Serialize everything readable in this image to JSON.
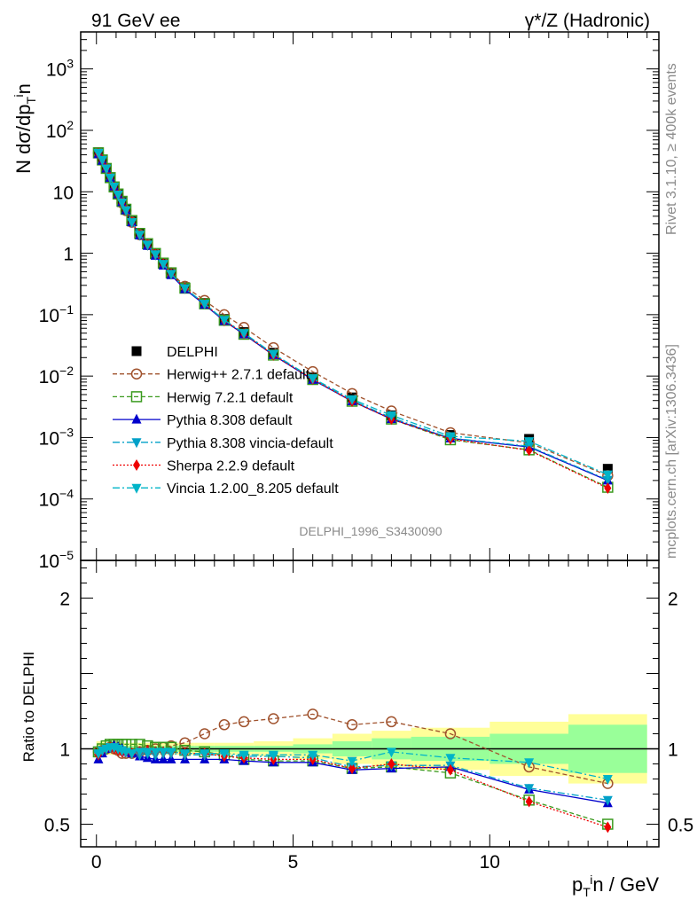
{
  "header": {
    "left_title": "91 GeV ee",
    "right_title": "γ*/Z (Hadronic)"
  },
  "side_notes": {
    "rivet": "Rivet 3.1.10, ≥ 400k events",
    "mcplots": "mcplots.cern.ch [arXiv:1306.3436]"
  },
  "analysis_label": "DELPHI_1996_S3430090",
  "chart_data": [
    {
      "type": "line",
      "panel": "main",
      "yscale": "log",
      "ylabel": "N dσ/dp_T^in",
      "xlim": [
        -0.4,
        14.3
      ],
      "ylim": [
        1e-05,
        4000
      ],
      "yticks": [
        "10^-5",
        "10^-4",
        "10^-3",
        "10^-2",
        "10^-1",
        "1",
        "10",
        "10^2",
        "10^3"
      ],
      "x": [
        0.05,
        0.15,
        0.25,
        0.35,
        0.45,
        0.55,
        0.65,
        0.75,
        0.9,
        1.1,
        1.3,
        1.5,
        1.7,
        1.9,
        2.25,
        2.75,
        3.25,
        3.75,
        4.5,
        5.5,
        6.5,
        7.5,
        9.0,
        11.0,
        13.0
      ],
      "series": [
        {
          "name": "DELPHI",
          "values": [
            44,
            33,
            24,
            17,
            12,
            9.0,
            6.8,
            5.1,
            3.3,
            2.05,
            1.4,
            0.98,
            0.68,
            0.47,
            0.28,
            0.155,
            0.085,
            0.052,
            0.024,
            0.0095,
            0.0045,
            0.0023,
            0.0011,
            0.00095,
            0.00031
          ]
        },
        {
          "name": "Herwig++ 2.7.1 default",
          "values": [
            43,
            33,
            24,
            17,
            12,
            9.0,
            6.6,
            4.95,
            3.2,
            2.0,
            1.38,
            0.98,
            0.69,
            0.48,
            0.29,
            0.17,
            0.1,
            0.062,
            0.029,
            0.0118,
            0.0052,
            0.0027,
            0.0012,
            0.00082,
            0.00024
          ]
        },
        {
          "name": "Herwig 7.2.1 default",
          "values": [
            43,
            33,
            24,
            17,
            12,
            9.2,
            7.0,
            5.2,
            3.4,
            2.1,
            1.43,
            0.99,
            0.69,
            0.48,
            0.27,
            0.15,
            0.081,
            0.048,
            0.022,
            0.0088,
            0.0039,
            0.002,
            0.00092,
            0.00063,
            0.000155
          ]
        },
        {
          "name": "Pythia 8.308 default",
          "values": [
            41,
            32,
            24,
            17,
            12.2,
            9.1,
            6.8,
            5.0,
            3.2,
            1.95,
            1.32,
            0.91,
            0.63,
            0.44,
            0.26,
            0.145,
            0.079,
            0.048,
            0.022,
            0.0087,
            0.0039,
            0.002,
            0.00097,
            0.0007,
            0.0002
          ]
        },
        {
          "name": "Pythia 8.308 vincia-default",
          "values": [
            42,
            33,
            24,
            17,
            12.1,
            9.0,
            6.7,
            5.0,
            3.2,
            1.98,
            1.36,
            0.94,
            0.66,
            0.46,
            0.27,
            0.15,
            0.082,
            0.05,
            0.023,
            0.0089,
            0.004,
            0.0021,
            0.00098,
            0.00072,
            0.000205
          ]
        },
        {
          "name": "Sherpa 2.2.9 default",
          "values": [
            42,
            33,
            24,
            17,
            12.0,
            8.9,
            6.6,
            5.0,
            3.2,
            2.0,
            1.38,
            0.96,
            0.67,
            0.46,
            0.27,
            0.15,
            0.08,
            0.049,
            0.022,
            0.0089,
            0.0039,
            0.002,
            0.00095,
            0.00062,
            0.00015
          ]
        },
        {
          "name": "Vincia 1.2.00_8.205 default",
          "values": [
            43,
            33,
            24,
            17,
            12.1,
            9.0,
            6.7,
            5.0,
            3.2,
            2.0,
            1.38,
            0.96,
            0.67,
            0.46,
            0.27,
            0.15,
            0.082,
            0.05,
            0.023,
            0.0092,
            0.0042,
            0.0023,
            0.00105,
            0.00087,
            0.00025
          ]
        }
      ]
    },
    {
      "type": "line",
      "panel": "ratio",
      "ylabel": "Ratio to DELPHI",
      "xlabel": "p_T^in / GeV",
      "xlim": [
        -0.4,
        14.3
      ],
      "ylim": [
        0.35,
        2.25
      ],
      "yticks": [
        "0.5",
        "1",
        "2"
      ],
      "xticks": [
        "0",
        "5",
        "10"
      ],
      "x": [
        0.05,
        0.15,
        0.25,
        0.35,
        0.45,
        0.55,
        0.65,
        0.75,
        0.9,
        1.1,
        1.3,
        1.5,
        1.7,
        1.9,
        2.25,
        2.75,
        3.25,
        3.75,
        4.5,
        5.5,
        6.5,
        7.5,
        9.0,
        11.0,
        13.0
      ],
      "series": [
        {
          "name": "Herwig++ 2.7.1 default",
          "values": [
            0.98,
            0.99,
            1.0,
            1.01,
            1.0,
            0.99,
            0.97,
            0.97,
            0.97,
            0.98,
            0.99,
            1.0,
            1.01,
            1.02,
            1.04,
            1.1,
            1.16,
            1.18,
            1.2,
            1.23,
            1.16,
            1.18,
            1.1,
            0.88,
            0.77
          ]
        },
        {
          "name": "Herwig 7.2.1 default",
          "values": [
            0.98,
            1.0,
            1.02,
            1.03,
            1.03,
            1.03,
            1.03,
            1.03,
            1.03,
            1.03,
            1.02,
            1.01,
            1.01,
            1.01,
            0.99,
            0.98,
            0.96,
            0.93,
            0.92,
            0.92,
            0.87,
            0.88,
            0.84,
            0.66,
            0.5
          ]
        },
        {
          "name": "Pythia 8.308 default",
          "values": [
            0.93,
            0.97,
            1.0,
            1.01,
            1.02,
            1.01,
            1.0,
            0.98,
            0.97,
            0.95,
            0.94,
            0.93,
            0.93,
            0.93,
            0.93,
            0.93,
            0.93,
            0.92,
            0.91,
            0.91,
            0.86,
            0.87,
            0.88,
            0.73,
            0.64
          ]
        },
        {
          "name": "Pythia 8.308 vincia-default",
          "values": [
            0.96,
            0.99,
            1.0,
            1.01,
            1.01,
            1.0,
            0.99,
            0.98,
            0.97,
            0.96,
            0.97,
            0.96,
            0.97,
            0.97,
            0.96,
            0.96,
            0.96,
            0.95,
            0.95,
            0.94,
            0.88,
            0.89,
            0.89,
            0.74,
            0.66
          ]
        },
        {
          "name": "Sherpa 2.2.9 default",
          "values": [
            0.96,
            0.99,
            1.0,
            1.01,
            1.0,
            0.99,
            0.98,
            0.98,
            0.97,
            0.98,
            0.99,
            0.98,
            0.98,
            0.98,
            0.97,
            0.97,
            0.95,
            0.94,
            0.93,
            0.93,
            0.87,
            0.9,
            0.86,
            0.65,
            0.48
          ]
        },
        {
          "name": "Vincia 1.2.00_8.205 default",
          "values": [
            0.97,
            0.99,
            1.0,
            1.01,
            1.01,
            1.0,
            0.99,
            0.98,
            0.97,
            0.98,
            0.98,
            0.98,
            0.98,
            0.98,
            0.97,
            0.97,
            0.97,
            0.96,
            0.96,
            0.96,
            0.92,
            0.98,
            0.94,
            0.91,
            0.8
          ]
        }
      ],
      "bands": {
        "x_edges": [
          0.0,
          0.1,
          0.2,
          0.3,
          0.4,
          0.5,
          0.6,
          0.7,
          0.8,
          1.0,
          1.2,
          1.4,
          1.6,
          1.8,
          2.0,
          2.5,
          3.0,
          3.5,
          4.0,
          5.0,
          6.0,
          7.0,
          8.0,
          10.0,
          12.0,
          14.0
        ],
        "stat_half": [
          0.02,
          0.02,
          0.02,
          0.02,
          0.02,
          0.02,
          0.02,
          0.02,
          0.02,
          0.02,
          0.02,
          0.02,
          0.02,
          0.02,
          0.02,
          0.02,
          0.02,
          0.02,
          0.02,
          0.03,
          0.05,
          0.07,
          0.08,
          0.1,
          0.16
        ],
        "tot_half": [
          0.05,
          0.05,
          0.04,
          0.04,
          0.04,
          0.04,
          0.04,
          0.04,
          0.04,
          0.04,
          0.04,
          0.04,
          0.04,
          0.04,
          0.04,
          0.04,
          0.04,
          0.04,
          0.05,
          0.07,
          0.1,
          0.12,
          0.14,
          0.18,
          0.23
        ]
      }
    }
  ],
  "colors": {
    "DELPHI": "#000000",
    "Herwig++ 2.7.1 default": "#a0522d",
    "Herwig 7.2.1 default": "#3a9a1e",
    "Pythia 8.308 default": "#0000cc",
    "Pythia 8.308 vincia-default": "#00a0c8",
    "Sherpa 2.2.9 default": "#ee0000",
    "Vincia 1.2.00_8.205 default": "#00b4c8",
    "stat_band": "#99ff99",
    "tot_band": "#ffff99"
  },
  "legend": [
    {
      "label": "DELPHI",
      "marker": "square-filled",
      "dash": "none"
    },
    {
      "label": "Herwig++ 2.7.1 default",
      "marker": "circle-open",
      "dash": "5,3"
    },
    {
      "label": "Herwig 7.2.1 default",
      "marker": "square-open",
      "dash": "5,3"
    },
    {
      "label": "Pythia 8.308 default",
      "marker": "triangle-up",
      "dash": "none"
    },
    {
      "label": "Pythia 8.308 vincia-default",
      "marker": "triangle-down",
      "dash": "8,3,2,3"
    },
    {
      "label": "Sherpa 2.2.9 default",
      "marker": "diamond",
      "dash": "2,2"
    },
    {
      "label": "Vincia 1.2.00_8.205 default",
      "marker": "triangle-down",
      "dash": "8,3,2,3"
    }
  ]
}
